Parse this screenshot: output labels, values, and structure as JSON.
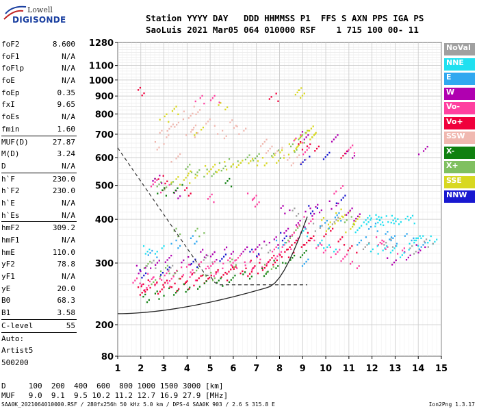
{
  "logo": {
    "line1": "Lowell",
    "line2": "DIGISONDE"
  },
  "header": {
    "row1": "Station YYYY DAY   DDD HHMMSS P1  FFS S AXN PPS IGA PS",
    "row2": "SaoLuis 2021 Mar05 064 010000 RSF    1 715 100 00- 11"
  },
  "params": {
    "g1": [
      [
        "foF2",
        "8.600"
      ],
      [
        "foF1",
        "N/A"
      ],
      [
        "foFlp",
        "N/A"
      ],
      [
        "foE",
        "N/A"
      ],
      [
        "foEp",
        "0.35"
      ],
      [
        "fxI",
        "9.65"
      ],
      [
        "foEs",
        "N/A"
      ],
      [
        "fmin",
        "1.60"
      ]
    ],
    "g2": [
      [
        "MUF(D)",
        "27.87"
      ],
      [
        "M(D)",
        "3.24"
      ],
      [
        "D",
        "N/A"
      ]
    ],
    "g3": [
      [
        "h`F",
        "230.0"
      ],
      [
        "h`F2",
        "230.0"
      ],
      [
        "h`E",
        "N/A"
      ],
      [
        "h`Es",
        "N/A"
      ]
    ],
    "g4": [
      [
        "hmF2",
        "309.2"
      ],
      [
        "hmF1",
        "N/A"
      ],
      [
        "hmE",
        "110.0"
      ],
      [
        "yF2",
        "78.8"
      ],
      [
        "yF1",
        "N/A"
      ],
      [
        "yE",
        "20.0"
      ],
      [
        "B0",
        "68.3"
      ],
      [
        "B1",
        "3.58"
      ]
    ],
    "g5": [
      [
        "C-level",
        "55"
      ]
    ],
    "auto": [
      "Auto:",
      "Artist5",
      "500200"
    ]
  },
  "legend": [
    {
      "label": "NoVal",
      "color": "#a0a0a0"
    },
    {
      "label": "NNE",
      "color": "#20e0f0"
    },
    {
      "label": "E",
      "color": "#30a8f0"
    },
    {
      "label": "W",
      "color": "#b000b0"
    },
    {
      "label": "Vo-",
      "color": "#ff40a0"
    },
    {
      "label": "Vo+",
      "color": "#f0003c"
    },
    {
      "label": "SSW",
      "color": "#f0b8b0"
    },
    {
      "label": "X-",
      "color": "#108010"
    },
    {
      "label": "X+",
      "color": "#80c060"
    },
    {
      "label": "SSE",
      "color": "#d8d820"
    },
    {
      "label": "NNW",
      "color": "#1818d0"
    }
  ],
  "footer": {
    "line1": "D     100  200  400  600  800 1000 1500 3000 [km]",
    "line2": "MUF   9.0  9.1  9.5 10.2 11.2 12.7 16.9 27.9 [MHz]",
    "line3": "SAA0K_2021064010000.RSF / 280fx256h 50 kHz 5.0 km / DPS-4 SAA0K 903 / 2.6 S 315.8 E",
    "version": "Ion2Png 1.3.17"
  },
  "chart_data": {
    "type": "scatter",
    "xlabel": "",
    "ylabel": "",
    "xlim": [
      1,
      15
    ],
    "ylim": [
      80,
      1280
    ],
    "x_ticks": [
      1,
      2,
      3,
      4,
      5,
      6,
      7,
      8,
      9,
      10,
      11,
      12,
      13,
      14,
      15
    ],
    "y_ticks": [
      80,
      200,
      300,
      400,
      500,
      600,
      700,
      800,
      900,
      1000,
      1100,
      1280
    ],
    "grid": true,
    "series": [
      {
        "name": "X+",
        "color": "#80c060",
        "points": [
          [
            2.8,
            510
          ],
          [
            3.2,
            500
          ],
          [
            4.0,
            560
          ],
          [
            4.5,
            540
          ],
          [
            5.0,
            550
          ],
          [
            5.5,
            570
          ],
          [
            6.0,
            585
          ],
          [
            6.5,
            600
          ],
          [
            7.0,
            605
          ],
          [
            7.8,
            615
          ],
          [
            8.5,
            640
          ],
          [
            9.0,
            680
          ],
          [
            9.3,
            700
          ],
          [
            2.2,
            300
          ],
          [
            2.6,
            270
          ],
          [
            3.0,
            290
          ],
          [
            3.5,
            280
          ],
          [
            4.5,
            285
          ],
          [
            5.0,
            275
          ],
          [
            6.0,
            300
          ],
          [
            7.5,
            290
          ],
          [
            8.3,
            350
          ],
          [
            8.8,
            380
          ],
          [
            11.0,
            400
          ],
          [
            3.5,
            370
          ],
          [
            4.5,
            370
          ]
        ]
      },
      {
        "name": "SSE",
        "color": "#d8d820",
        "points": [
          [
            3.5,
            520
          ],
          [
            4.0,
            525
          ],
          [
            4.2,
            540
          ],
          [
            4.8,
            555
          ],
          [
            5.3,
            560
          ],
          [
            5.8,
            570
          ],
          [
            6.2,
            575
          ],
          [
            6.8,
            590
          ],
          [
            7.2,
            590
          ],
          [
            7.8,
            600
          ],
          [
            8.2,
            620
          ],
          [
            8.6,
            645
          ],
          [
            8.8,
            660
          ],
          [
            9.0,
            700
          ],
          [
            9.3,
            720
          ],
          [
            9.5,
            690
          ],
          [
            10.0,
            400
          ],
          [
            10.5,
            410
          ],
          [
            10.8,
            420
          ],
          [
            11.0,
            380
          ],
          [
            11.3,
            400
          ],
          [
            10.2,
            380
          ],
          [
            3.0,
            780
          ],
          [
            3.5,
            820
          ],
          [
            5.5,
            840
          ],
          [
            8.7,
            940
          ],
          [
            9.0,
            920
          ],
          [
            4.5,
            720
          ]
        ]
      },
      {
        "name": "Vo-",
        "color": "#ff40a0",
        "points": [
          [
            1.8,
            265
          ],
          [
            2.1,
            260
          ],
          [
            2.4,
            275
          ],
          [
            2.7,
            268
          ],
          [
            3.0,
            280
          ],
          [
            3.3,
            270
          ],
          [
            3.6,
            285
          ],
          [
            4.0,
            290
          ],
          [
            4.3,
            275
          ],
          [
            4.7,
            295
          ],
          [
            5.0,
            300
          ],
          [
            5.3,
            285
          ],
          [
            5.7,
            305
          ],
          [
            6.0,
            300
          ],
          [
            6.3,
            310
          ],
          [
            6.7,
            295
          ],
          [
            7.0,
            320
          ],
          [
            7.3,
            300
          ],
          [
            7.7,
            330
          ],
          [
            8.0,
            320
          ],
          [
            8.3,
            340
          ],
          [
            8.6,
            360
          ],
          [
            8.9,
            380
          ],
          [
            9.2,
            400
          ],
          [
            9.6,
            340
          ],
          [
            10.0,
            330
          ],
          [
            10.4,
            320
          ],
          [
            10.8,
            310
          ],
          [
            11.2,
            300
          ],
          [
            12.2,
            350
          ],
          [
            12.6,
            340
          ],
          [
            13.2,
            330
          ],
          [
            2.5,
            510
          ],
          [
            3.0,
            490
          ],
          [
            4.5,
            880
          ],
          [
            5.0,
            460
          ],
          [
            5.2,
            880
          ],
          [
            6.8,
            470
          ],
          [
            7.0,
            450
          ],
          [
            10.5,
            490
          ],
          [
            11.0,
            640
          ],
          [
            9.2,
            630
          ],
          [
            8.8,
            680
          ]
        ]
      },
      {
        "name": "Vo+",
        "color": "#f0003c",
        "points": [
          [
            1.9,
            250
          ],
          [
            2.2,
            255
          ],
          [
            2.5,
            262
          ],
          [
            2.8,
            250
          ],
          [
            3.1,
            265
          ],
          [
            3.4,
            258
          ],
          [
            3.8,
            270
          ],
          [
            4.1,
            262
          ],
          [
            4.4,
            275
          ],
          [
            4.8,
            270
          ],
          [
            5.1,
            280
          ],
          [
            5.5,
            275
          ],
          [
            5.9,
            285
          ],
          [
            6.2,
            290
          ],
          [
            6.6,
            285
          ],
          [
            6.9,
            300
          ],
          [
            7.2,
            290
          ],
          [
            7.6,
            310
          ],
          [
            7.9,
            305
          ],
          [
            8.2,
            320
          ],
          [
            8.5,
            330
          ],
          [
            8.8,
            340
          ],
          [
            9.1,
            350
          ],
          [
            9.4,
            360
          ],
          [
            10.1,
            370
          ],
          [
            10.6,
            350
          ],
          [
            11.1,
            330
          ],
          [
            2.9,
            520
          ],
          [
            4.0,
            480
          ],
          [
            9.0,
            650
          ],
          [
            9.5,
            640
          ],
          [
            10.8,
            620
          ],
          [
            7.7,
            900
          ],
          [
            1.9,
            935
          ]
        ]
      },
      {
        "name": "W",
        "color": "#b000b0",
        "points": [
          [
            2.0,
            290
          ],
          [
            2.6,
            300
          ],
          [
            3.2,
            310
          ],
          [
            3.9,
            305
          ],
          [
            4.6,
            320
          ],
          [
            5.2,
            315
          ],
          [
            5.8,
            325
          ],
          [
            6.4,
            330
          ],
          [
            7.1,
            340
          ],
          [
            7.7,
            350
          ],
          [
            8.3,
            370
          ],
          [
            8.9,
            390
          ],
          [
            9.3,
            420
          ],
          [
            9.7,
            430
          ],
          [
            10.3,
            440
          ],
          [
            10.9,
            420
          ],
          [
            11.4,
            410
          ],
          [
            2.7,
            525
          ],
          [
            3.5,
            475
          ],
          [
            8.2,
            430
          ],
          [
            12.8,
            305
          ],
          [
            13.5,
            315
          ],
          [
            14.1,
            330
          ],
          [
            14.2,
            630
          ],
          [
            10.4,
            680
          ],
          [
            11.0,
            620
          ],
          [
            9.0,
            700
          ]
        ]
      },
      {
        "name": "NNE",
        "color": "#20e0f0",
        "points": [
          [
            11.7,
            400
          ],
          [
            11.9,
            395
          ],
          [
            12.1,
            405
          ],
          [
            12.3,
            400
          ],
          [
            12.5,
            398
          ],
          [
            12.8,
            402
          ],
          [
            13.0,
            400
          ],
          [
            13.3,
            398
          ],
          [
            13.6,
            400
          ],
          [
            14.0,
            350
          ],
          [
            14.3,
            355
          ],
          [
            14.6,
            352
          ],
          [
            12.0,
            335
          ],
          [
            12.4,
            330
          ],
          [
            12.9,
            330
          ],
          [
            13.4,
            320
          ],
          [
            13.8,
            345
          ],
          [
            9.8,
            340
          ],
          [
            10.2,
            330
          ],
          [
            11.3,
            380
          ],
          [
            2.3,
            330
          ],
          [
            2.8,
            330
          ],
          [
            9.0,
            370
          ]
        ]
      },
      {
        "name": "E",
        "color": "#30a8f0",
        "points": [
          [
            12.0,
            380
          ],
          [
            12.6,
            360
          ],
          [
            13.0,
            350
          ],
          [
            13.6,
            355
          ],
          [
            14.1,
            340
          ],
          [
            11.5,
            350
          ],
          [
            9.9,
            390
          ],
          [
            10.5,
            410
          ],
          [
            2.5,
            320
          ],
          [
            3.5,
            340
          ],
          [
            4.3,
            350
          ],
          [
            8.0,
            340
          ],
          [
            9.0,
            300
          ]
        ]
      },
      {
        "name": "X-",
        "color": "#108010",
        "points": [
          [
            2.2,
            240
          ],
          [
            2.8,
            245
          ],
          [
            3.4,
            250
          ],
          [
            4.0,
            255
          ],
          [
            4.6,
            260
          ],
          [
            5.3,
            265
          ],
          [
            6.0,
            270
          ],
          [
            6.6,
            280
          ],
          [
            7.3,
            285
          ],
          [
            7.9,
            300
          ],
          [
            8.4,
            310
          ],
          [
            9.0,
            320
          ],
          [
            3.6,
            490
          ],
          [
            2.9,
            480
          ],
          [
            5.8,
            510
          ]
        ]
      },
      {
        "name": "SSW",
        "color": "#f0b8b0",
        "points": [
          [
            3.0,
            700
          ],
          [
            3.2,
            740
          ],
          [
            3.6,
            760
          ],
          [
            4.1,
            710
          ],
          [
            4.3,
            730
          ],
          [
            5.0,
            760
          ],
          [
            5.5,
            700
          ],
          [
            6.0,
            750
          ],
          [
            6.3,
            720
          ],
          [
            7.2,
            660
          ],
          [
            7.6,
            640
          ],
          [
            8.0,
            630
          ],
          [
            8.4,
            590
          ],
          [
            8.9,
            600
          ],
          [
            4.0,
            800
          ],
          [
            4.4,
            820
          ],
          [
            2.8,
            650
          ],
          [
            3.5,
            600
          ]
        ]
      },
      {
        "name": "NNW",
        "color": "#1818d0",
        "points": [
          [
            2.1,
            280
          ],
          [
            3.0,
            285
          ],
          [
            4.2,
            300
          ],
          [
            5.6,
            310
          ],
          [
            6.9,
            325
          ],
          [
            8.1,
            360
          ],
          [
            9.4,
            430
          ],
          [
            10.6,
            460
          ],
          [
            10.0,
            610
          ],
          [
            9.1,
            590
          ]
        ]
      },
      {
        "name": "NoVal",
        "color": "#a0a0a0",
        "points": [
          [
            2.4,
            300
          ],
          [
            3.3,
            290
          ],
          [
            4.9,
            310
          ],
          [
            7.4,
            330
          ],
          [
            8.7,
            420
          ],
          [
            9.6,
            380
          ],
          [
            10.3,
            395
          ],
          [
            11.8,
            340
          ],
          [
            12.7,
            345
          ],
          [
            13.7,
            330
          ],
          [
            14.4,
            345
          ]
        ]
      }
    ]
  }
}
